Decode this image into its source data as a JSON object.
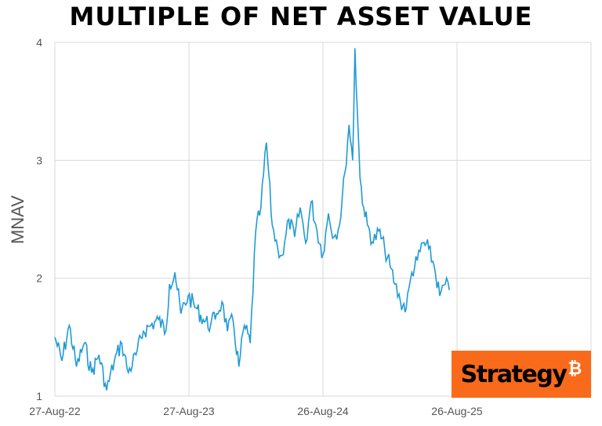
{
  "title": "MULTIPLE OF NET ASSET VALUE",
  "logo": {
    "text": "Strategy",
    "mark": "₿"
  },
  "chart_data": {
    "type": "line",
    "title": "MULTIPLE OF NET ASSET VALUE",
    "xlabel": "",
    "ylabel": "MNAV",
    "ylim": [
      1,
      4
    ],
    "yticks": [
      "1",
      "2",
      "3",
      "4"
    ],
    "xticks": [
      "27-Aug-22",
      "27-Aug-23",
      "26-Aug-24",
      "26-Aug-25"
    ],
    "xlim": [
      "2022-08-27",
      "2026-08-26"
    ],
    "grid": true,
    "color": "#1f9bd4",
    "series": [
      {
        "x": [
          "2022-08-27",
          "2022-09-15",
          "2022-10-05",
          "2022-10-25",
          "2022-11-15",
          "2022-12-05",
          "2022-12-25",
          "2023-01-15",
          "2023-02-05",
          "2023-02-25",
          "2023-03-15",
          "2023-04-05",
          "2023-04-25",
          "2023-05-15",
          "2023-06-05",
          "2023-06-25",
          "2023-07-05",
          "2023-07-20",
          "2023-08-05",
          "2023-08-25",
          "2023-09-15",
          "2023-10-05",
          "2023-10-25",
          "2023-11-10",
          "2023-11-25",
          "2023-12-10",
          "2023-12-25",
          "2024-01-10",
          "2024-01-25",
          "2024-02-10",
          "2024-02-25",
          "2024-03-10",
          "2024-03-25",
          "2024-04-10",
          "2024-04-25",
          "2024-05-10",
          "2024-05-25",
          "2024-06-10",
          "2024-06-25",
          "2024-07-10",
          "2024-07-25",
          "2024-08-10",
          "2024-08-26",
          "2024-09-10",
          "2024-09-25",
          "2024-10-10",
          "2024-10-25",
          "2024-11-05",
          "2024-11-15",
          "2024-11-21",
          "2024-11-28",
          "2024-12-05",
          "2024-12-15",
          "2024-12-25",
          "2025-01-10",
          "2025-01-25",
          "2025-02-10",
          "2025-02-25",
          "2025-03-10",
          "2025-03-25",
          "2025-04-10",
          "2025-04-25",
          "2025-05-10",
          "2025-05-25",
          "2025-06-10",
          "2025-06-25",
          "2025-07-10",
          "2025-07-25",
          "2025-08-05"
        ],
        "y": [
          1.5,
          1.3,
          1.6,
          1.25,
          1.45,
          1.2,
          1.35,
          1.05,
          1.3,
          1.45,
          1.2,
          1.35,
          1.55,
          1.6,
          1.65,
          1.55,
          1.95,
          2.05,
          1.7,
          1.85,
          1.75,
          1.65,
          1.6,
          1.7,
          1.8,
          1.55,
          1.65,
          1.25,
          1.6,
          1.45,
          2.4,
          2.6,
          3.15,
          2.45,
          2.25,
          2.2,
          2.5,
          2.35,
          2.6,
          2.3,
          2.65,
          2.4,
          2.2,
          2.55,
          2.35,
          2.45,
          2.9,
          3.3,
          3.0,
          3.95,
          3.4,
          2.85,
          2.6,
          2.45,
          2.3,
          2.4,
          2.25,
          2.1,
          1.95,
          1.8,
          1.75,
          2.05,
          2.15,
          2.3,
          2.25,
          2.1,
          1.85,
          1.95,
          1.9
        ]
      }
    ]
  }
}
